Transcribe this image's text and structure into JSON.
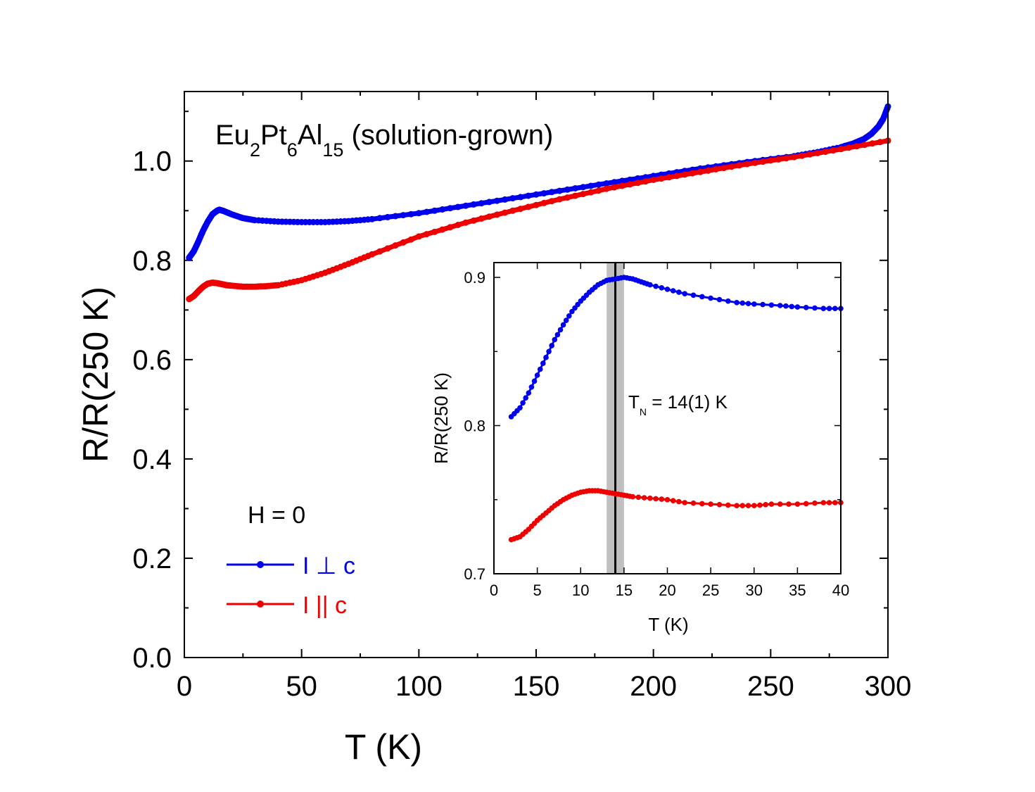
{
  "chart_data": [
    {
      "type": "scatter",
      "panel": "main",
      "title_parts": {
        "el1": "Eu",
        "sub1": "2",
        "el2": "Pt",
        "sub2": "6",
        "el3": "Al",
        "sub3": "15",
        "rest": " (solution-grown)"
      },
      "xlabel": "T (K)",
      "ylabel": "R/R(250 K)",
      "xlim": [
        0,
        300
      ],
      "ylim": [
        0,
        1.14
      ],
      "xticks": [
        0,
        50,
        100,
        150,
        200,
        250,
        300
      ],
      "xtick_labels": [
        "0",
        "50",
        "100",
        "150",
        "200",
        "250",
        "300"
      ],
      "yticks": [
        0.0,
        0.2,
        0.4,
        0.6,
        0.8,
        1.0
      ],
      "ytick_labels": [
        "0.0",
        "0.2",
        "0.4",
        "0.6",
        "0.8",
        "1.0"
      ],
      "legend": {
        "title": "H = 0",
        "placement": "bottom-left",
        "entries": [
          {
            "label": "I ⊥ c",
            "color": "#0000ee"
          },
          {
            "label": "I || c",
            "color": "#ee0000"
          }
        ]
      },
      "series": [
        {
          "name": "I ⊥ c",
          "color": "#0000ee",
          "x": [
            2,
            4,
            6,
            8,
            10,
            12,
            14,
            15,
            17,
            20,
            25,
            30,
            40,
            50,
            60,
            70,
            80,
            100,
            120,
            140,
            160,
            180,
            200,
            220,
            240,
            260,
            270,
            280,
            285,
            290,
            293,
            296,
            298,
            300
          ],
          "y": [
            0.805,
            0.818,
            0.838,
            0.86,
            0.878,
            0.893,
            0.9,
            0.902,
            0.899,
            0.893,
            0.885,
            0.881,
            0.878,
            0.877,
            0.877,
            0.879,
            0.883,
            0.895,
            0.91,
            0.925,
            0.94,
            0.955,
            0.97,
            0.985,
            0.998,
            1.01,
            1.018,
            1.028,
            1.035,
            1.045,
            1.055,
            1.07,
            1.085,
            1.11
          ]
        },
        {
          "name": "I || c",
          "color": "#ee0000",
          "x": [
            2,
            4,
            6,
            8,
            10,
            12,
            14,
            16,
            18,
            20,
            25,
            30,
            35,
            40,
            50,
            60,
            70,
            80,
            100,
            120,
            140,
            160,
            180,
            200,
            220,
            240,
            260,
            280,
            300
          ],
          "y": [
            0.722,
            0.728,
            0.738,
            0.747,
            0.753,
            0.755,
            0.754,
            0.752,
            0.75,
            0.749,
            0.747,
            0.747,
            0.748,
            0.75,
            0.76,
            0.775,
            0.793,
            0.812,
            0.848,
            0.876,
            0.9,
            0.923,
            0.944,
            0.962,
            0.978,
            0.994,
            1.008,
            1.024,
            1.041
          ]
        }
      ]
    },
    {
      "type": "scatter",
      "panel": "inset",
      "xlabel": "T (K)",
      "ylabel": "R/R(250 K)",
      "xlim": [
        0,
        40
      ],
      "ylim": [
        0.7,
        0.91
      ],
      "xticks": [
        0,
        5,
        10,
        15,
        20,
        25,
        30,
        35,
        40
      ],
      "xtick_labels": [
        "0",
        "5",
        "10",
        "15",
        "20",
        "25",
        "30",
        "35",
        "40"
      ],
      "yticks": [
        0.7,
        0.8,
        0.9
      ],
      "ytick_labels": [
        "0.7",
        "0.8",
        "0.9"
      ],
      "annotation": {
        "symbol": "T",
        "subscript": "N",
        "text": " = 14(1) K"
      },
      "vline": {
        "x": 14,
        "band": [
          13,
          15
        ]
      },
      "series": [
        {
          "name": "I ⊥ c",
          "color": "#0000ee",
          "x": [
            2,
            3,
            4,
            5,
            6,
            7,
            8,
            9,
            10,
            11,
            12,
            13,
            14,
            15,
            16,
            17,
            18,
            20,
            22,
            25,
            28,
            30,
            33,
            35,
            38,
            40
          ],
          "y": [
            0.806,
            0.812,
            0.822,
            0.834,
            0.846,
            0.858,
            0.868,
            0.877,
            0.884,
            0.89,
            0.895,
            0.898,
            0.899,
            0.9,
            0.899,
            0.897,
            0.895,
            0.892,
            0.889,
            0.886,
            0.883,
            0.882,
            0.881,
            0.88,
            0.879,
            0.879
          ]
        },
        {
          "name": "I || c",
          "color": "#ee0000",
          "x": [
            2,
            3,
            4,
            5,
            6,
            7,
            8,
            9,
            10,
            11,
            12,
            13,
            14,
            15,
            16,
            18,
            20,
            22,
            25,
            28,
            30,
            32,
            35,
            38,
            40
          ],
          "y": [
            0.723,
            0.725,
            0.73,
            0.736,
            0.741,
            0.746,
            0.75,
            0.753,
            0.755,
            0.756,
            0.756,
            0.755,
            0.754,
            0.753,
            0.752,
            0.751,
            0.75,
            0.748,
            0.747,
            0.746,
            0.746,
            0.747,
            0.747,
            0.748,
            0.748
          ]
        }
      ]
    }
  ]
}
